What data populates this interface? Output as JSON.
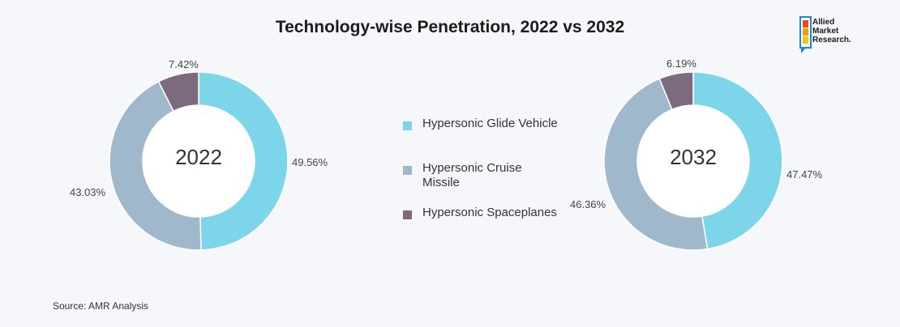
{
  "title": "Technology-wise Penetration, 2022 vs 2032",
  "logo": {
    "line1": "Allied",
    "line2": "Market",
    "line3": "Research."
  },
  "source": "Source: AMR Analysis",
  "colors": {
    "glide": "#7dd5ea",
    "cruise": "#9fb8cc",
    "spaceplanes": "#7d6a7d"
  },
  "legend": [
    {
      "label": "Hypersonic Glide Vehicle",
      "color": "#7dd5ea"
    },
    {
      "label": "Hypersonic Cruise Missile",
      "color": "#9fb8cc"
    },
    {
      "label": "Hypersonic Spaceplanes",
      "color": "#7d6a7d"
    }
  ],
  "chart_data": [
    {
      "type": "pie",
      "center_label": "2022",
      "categories": [
        "Hypersonic Glide Vehicle",
        "Hypersonic Cruise Missile",
        "Hypersonic Spaceplanes"
      ],
      "values": [
        49.56,
        43.03,
        7.42
      ],
      "labels": [
        "49.56%",
        "43.03%",
        "7.42%"
      ]
    },
    {
      "type": "pie",
      "center_label": "2032",
      "categories": [
        "Hypersonic Glide Vehicle",
        "Hypersonic Cruise Missile",
        "Hypersonic Spaceplanes"
      ],
      "values": [
        47.47,
        46.36,
        6.19
      ],
      "labels": [
        "47.47%",
        "46.36%",
        "6.19%"
      ]
    }
  ]
}
